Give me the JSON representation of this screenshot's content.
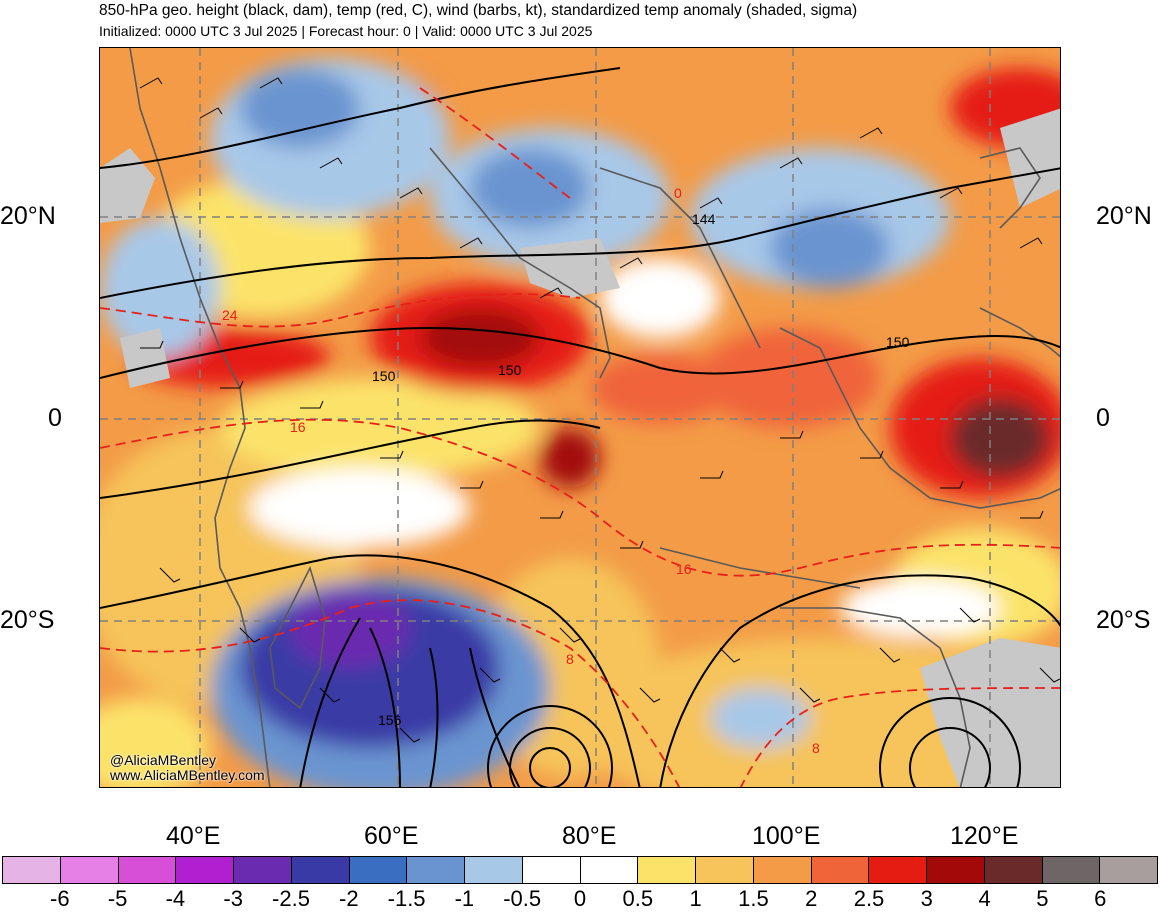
{
  "header": {
    "title": "850-hPa geo. height (black, dam), temp (red, C), wind (barbs, kt), standardized temp anomaly (shaded, sigma)",
    "subtitle": "Initialized: 0000 UTC 3 Jul 2025 | Forecast hour: 0 | Valid: 0000 UTC 3 Jul 2025"
  },
  "map": {
    "lat_labels_left": [
      "20°N",
      "0",
      "20°S"
    ],
    "lat_labels_right": [
      "20°N",
      "0",
      "20°S"
    ],
    "lon_labels": [
      "40°E",
      "60°E",
      "80°E",
      "100°E",
      "120°E"
    ],
    "height_contour_labels": [
      "144",
      "150",
      "150",
      "150",
      "156"
    ],
    "temp_contour_labels": [
      "24",
      "16",
      "16",
      "8",
      "8",
      "0"
    ],
    "credit": {
      "handle": "@AliciaMBentley",
      "site": "www.AliciaMBentley.com"
    },
    "colors": {
      "land_gray": "#c8c8c8",
      "height_contour": "#000000",
      "temp_contour": "#e8201a",
      "gridline": "#808080"
    }
  },
  "colorbar": {
    "labels": [
      "-6",
      "-5",
      "-4",
      "-3",
      "-2.5",
      "-2",
      "-1.5",
      "-1",
      "-0.5",
      "0",
      "0.5",
      "1",
      "1.5",
      "2",
      "2.5",
      "3",
      "4",
      "5",
      "6"
    ],
    "colors": [
      "#e6b3e6",
      "#e680e6",
      "#d64fd6",
      "#b01fd0",
      "#6b2bb0",
      "#3a3aa6",
      "#3a6ec0",
      "#6a94d0",
      "#a8c8e8",
      "#ffffff",
      "#ffffff",
      "#fbe36a",
      "#f6c45a",
      "#f39b47",
      "#f0643a",
      "#e51c12",
      "#a30909",
      "#6b2a2a",
      "#6e6666",
      "#a89e9e"
    ]
  }
}
